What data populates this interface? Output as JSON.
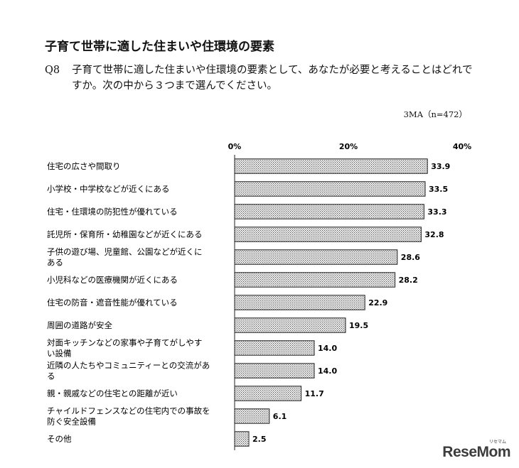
{
  "header": {
    "title": "子育て世帯に適した住まいや住環境の要素",
    "question_number": "Q8",
    "question_text": "子育て世帯に適した住まいや住環境の要素として、あなたが必要と考えることはどれですか。次の中から３つまで選んでください。",
    "sample_note": "3MA（n=472）"
  },
  "chart_data": {
    "type": "bar",
    "orientation": "horizontal",
    "ticks": [
      "0%",
      "20%",
      "40%"
    ],
    "xlim": [
      0,
      40
    ],
    "grid": false,
    "categories": [
      [
        "住宅の広さや間取り"
      ],
      [
        "小学校・中学校などが近くにある"
      ],
      [
        "住宅・住環境の防犯性が優れている"
      ],
      [
        "託児所・保育所・幼稚園などが近くにある"
      ],
      [
        "子供の遊び場、児童館、公園などが近くに",
        "ある"
      ],
      [
        "小児科などの医療機関が近くにある"
      ],
      [
        "住宅の防音・遮音性能が優れている"
      ],
      [
        "周囲の道路が安全"
      ],
      [
        "対面キッチンなどの家事や子育てがしやす",
        "い設備"
      ],
      [
        "近隣の人たちやコミュニティーとの交流があ",
        "る"
      ],
      [
        "親・親戚などの住宅との距離が近い"
      ],
      [
        "チャイルドフェンスなどの住宅内での事故を",
        "防ぐ安全設備"
      ],
      [
        "その他"
      ]
    ],
    "values": [
      33.9,
      33.5,
      33.3,
      32.8,
      28.6,
      28.2,
      22.9,
      19.5,
      14.0,
      14.0,
      11.7,
      6.1,
      2.5
    ],
    "value_labels": [
      "33.9",
      "33.5",
      "33.3",
      "32.8",
      "28.6",
      "28.2",
      "22.9",
      "19.5",
      "14.0",
      "14.0",
      "11.7",
      "6.1",
      "2.5"
    ]
  },
  "watermark": {
    "text": "ReseMom",
    "small": "リセマム"
  }
}
